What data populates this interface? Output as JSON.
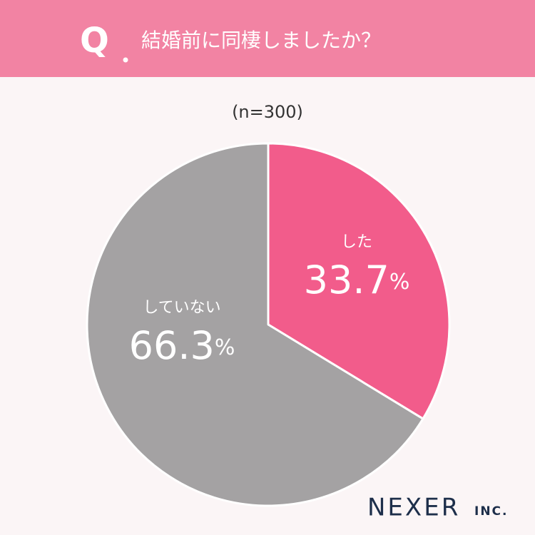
{
  "header": {
    "mark": "Q",
    "title": "結婚前に同棲しましたか？"
  },
  "chart_data": {
    "type": "pie",
    "subtitle": "(n=300)",
    "categories": [
      "した",
      "していない"
    ],
    "values": [
      33.7,
      66.3
    ],
    "value_labels": [
      "33.7%",
      "66.3%"
    ],
    "colors": [
      "#f25c8b",
      "#a4a2a3"
    ]
  },
  "logo": {
    "name": "NEXER",
    "suffix": "INC."
  }
}
